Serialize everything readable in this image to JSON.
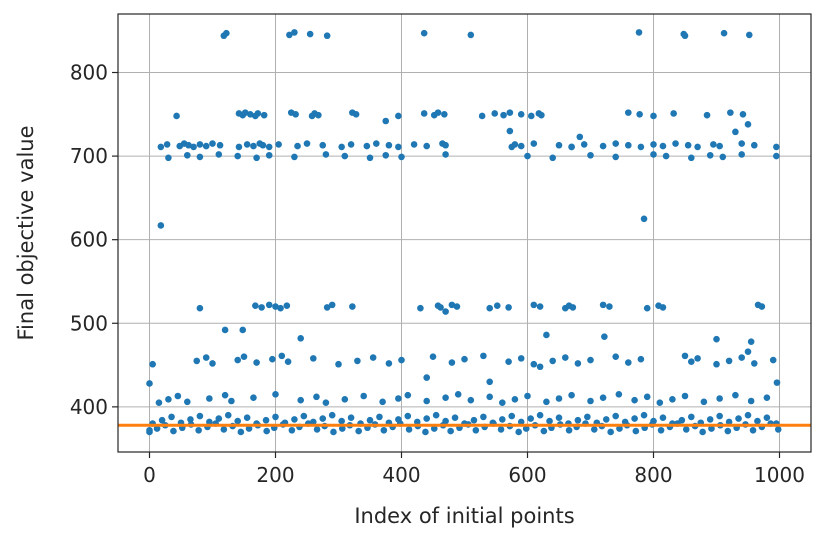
{
  "chart_data": {
    "type": "scatter",
    "title": "",
    "xlabel": "Index of initial points",
    "ylabel": "Final objective value",
    "xlim": [
      -50,
      1050
    ],
    "ylim": [
      346,
      870
    ],
    "xticks": [
      0,
      200,
      400,
      600,
      800,
      1000
    ],
    "yticks": [
      400,
      500,
      600,
      700,
      800
    ],
    "grid": true,
    "legend": "none",
    "point_color": "#1f77b4",
    "reference_line": {
      "y": 378,
      "color": "#ff7f0e"
    },
    "clusters": [
      {
        "value": 846,
        "x": [
          118,
          122,
          222,
          230,
          255,
          282,
          436,
          510,
          777,
          848,
          850,
          912,
          952
        ]
      },
      {
        "value": 750,
        "x": [
          43,
          142,
          148,
          152,
          160,
          168,
          172,
          182,
          225,
          232,
          258,
          262,
          268,
          322,
          328,
          395,
          436,
          452,
          458,
          468,
          528,
          548,
          562,
          572,
          590,
          606,
          618,
          622,
          760,
          778,
          800,
          832,
          885,
          922,
          942
        ]
      },
      {
        "value": 713,
        "x": [
          18,
          28,
          48,
          55,
          62,
          70,
          80,
          90,
          100,
          112,
          142,
          155,
          165,
          175,
          180,
          190,
          205,
          235,
          250,
          275,
          305,
          320,
          345,
          360,
          380,
          395,
          420,
          440,
          465,
          470,
          575,
          580,
          590,
          610,
          650,
          670,
          690,
          720,
          740,
          760,
          780,
          800,
          815,
          835,
          855,
          870,
          895,
          905,
          940,
          960,
          995
        ]
      },
      {
        "value": 700,
        "x": [
          30,
          60,
          80,
          110,
          140,
          170,
          190,
          230,
          280,
          310,
          350,
          375,
          400,
          470,
          600,
          640,
          700,
          740,
          800,
          820,
          860,
          890,
          910,
          940,
          995
        ]
      },
      {
        "value": 520,
        "x": [
          80,
          168,
          178,
          190,
          200,
          208,
          218,
          282,
          290,
          322,
          430,
          458,
          462,
          480,
          488,
          540,
          552,
          570,
          610,
          620,
          660,
          666,
          672,
          720,
          730,
          790,
          808,
          815,
          966,
          972
        ]
      },
      {
        "value": 456,
        "x": [
          5,
          75,
          90,
          100,
          140,
          150,
          170,
          195,
          210,
          220,
          260,
          300,
          330,
          355,
          380,
          400,
          450,
          480,
          500,
          530,
          570,
          590,
          610,
          640,
          660,
          680,
          700,
          740,
          760,
          780,
          850,
          860,
          870,
          900,
          920,
          940,
          960,
          990
        ]
      },
      {
        "value": 410,
        "x": [
          15,
          30,
          45,
          60,
          95,
          120,
          130,
          165,
          200,
          240,
          265,
          280,
          310,
          340,
          370,
          395,
          410,
          440,
          470,
          490,
          510,
          540,
          560,
          580,
          600,
          630,
          650,
          670,
          700,
          720,
          745,
          770,
          790,
          810,
          830,
          850,
          880,
          905,
          930,
          955,
          980
        ]
      },
      {
        "value": 385,
        "x": [
          5,
          20,
          35,
          50,
          65,
          80,
          95,
          110,
          125,
          140,
          155,
          170,
          185,
          200,
          215,
          230,
          245,
          260,
          275,
          290,
          305,
          320,
          335,
          350,
          365,
          380,
          395,
          410,
          425,
          440,
          455,
          470,
          485,
          500,
          515,
          530,
          545,
          560,
          575,
          590,
          605,
          620,
          635,
          650,
          665,
          680,
          695,
          710,
          725,
          740,
          755,
          770,
          785,
          800,
          815,
          830,
          845,
          860,
          875,
          890,
          905,
          920,
          935,
          950,
          965,
          980,
          995
        ]
      },
      {
        "value": 375,
        "x": [
          0,
          12,
          25,
          38,
          52,
          66,
          78,
          92,
          105,
          118,
          132,
          145,
          158,
          172,
          186,
          198,
          212,
          226,
          238,
          252,
          266,
          278,
          292,
          306,
          318,
          332,
          346,
          358,
          372,
          386,
          398,
          412,
          426,
          438,
          452,
          466,
          478,
          492,
          506,
          518,
          532,
          546,
          558,
          572,
          586,
          598,
          612,
          626,
          638,
          652,
          666,
          678,
          692,
          706,
          718,
          732,
          746,
          758,
          772,
          786,
          798,
          812,
          826,
          838,
          852,
          866,
          878,
          892,
          906,
          918,
          932,
          946,
          958,
          972,
          986,
          998
        ]
      }
    ],
    "points": [
      [
        18,
        617
      ],
      [
        785,
        625
      ],
      [
        240,
        482
      ],
      [
        120,
        492
      ],
      [
        148,
        492
      ],
      [
        440,
        435
      ],
      [
        540,
        430
      ],
      [
        620,
        448
      ],
      [
        630,
        486
      ],
      [
        722,
        484
      ],
      [
        900,
        481
      ],
      [
        955,
        478
      ],
      [
        996,
        429
      ],
      [
        0,
        428
      ],
      [
        470,
        514
      ],
      [
        950,
        466
      ],
      [
        375,
        742
      ],
      [
        572,
        730
      ],
      [
        950,
        738
      ],
      [
        930,
        729
      ],
      [
        683,
        723
      ],
      [
        670,
        711
      ],
      [
        0,
        372
      ]
    ]
  }
}
